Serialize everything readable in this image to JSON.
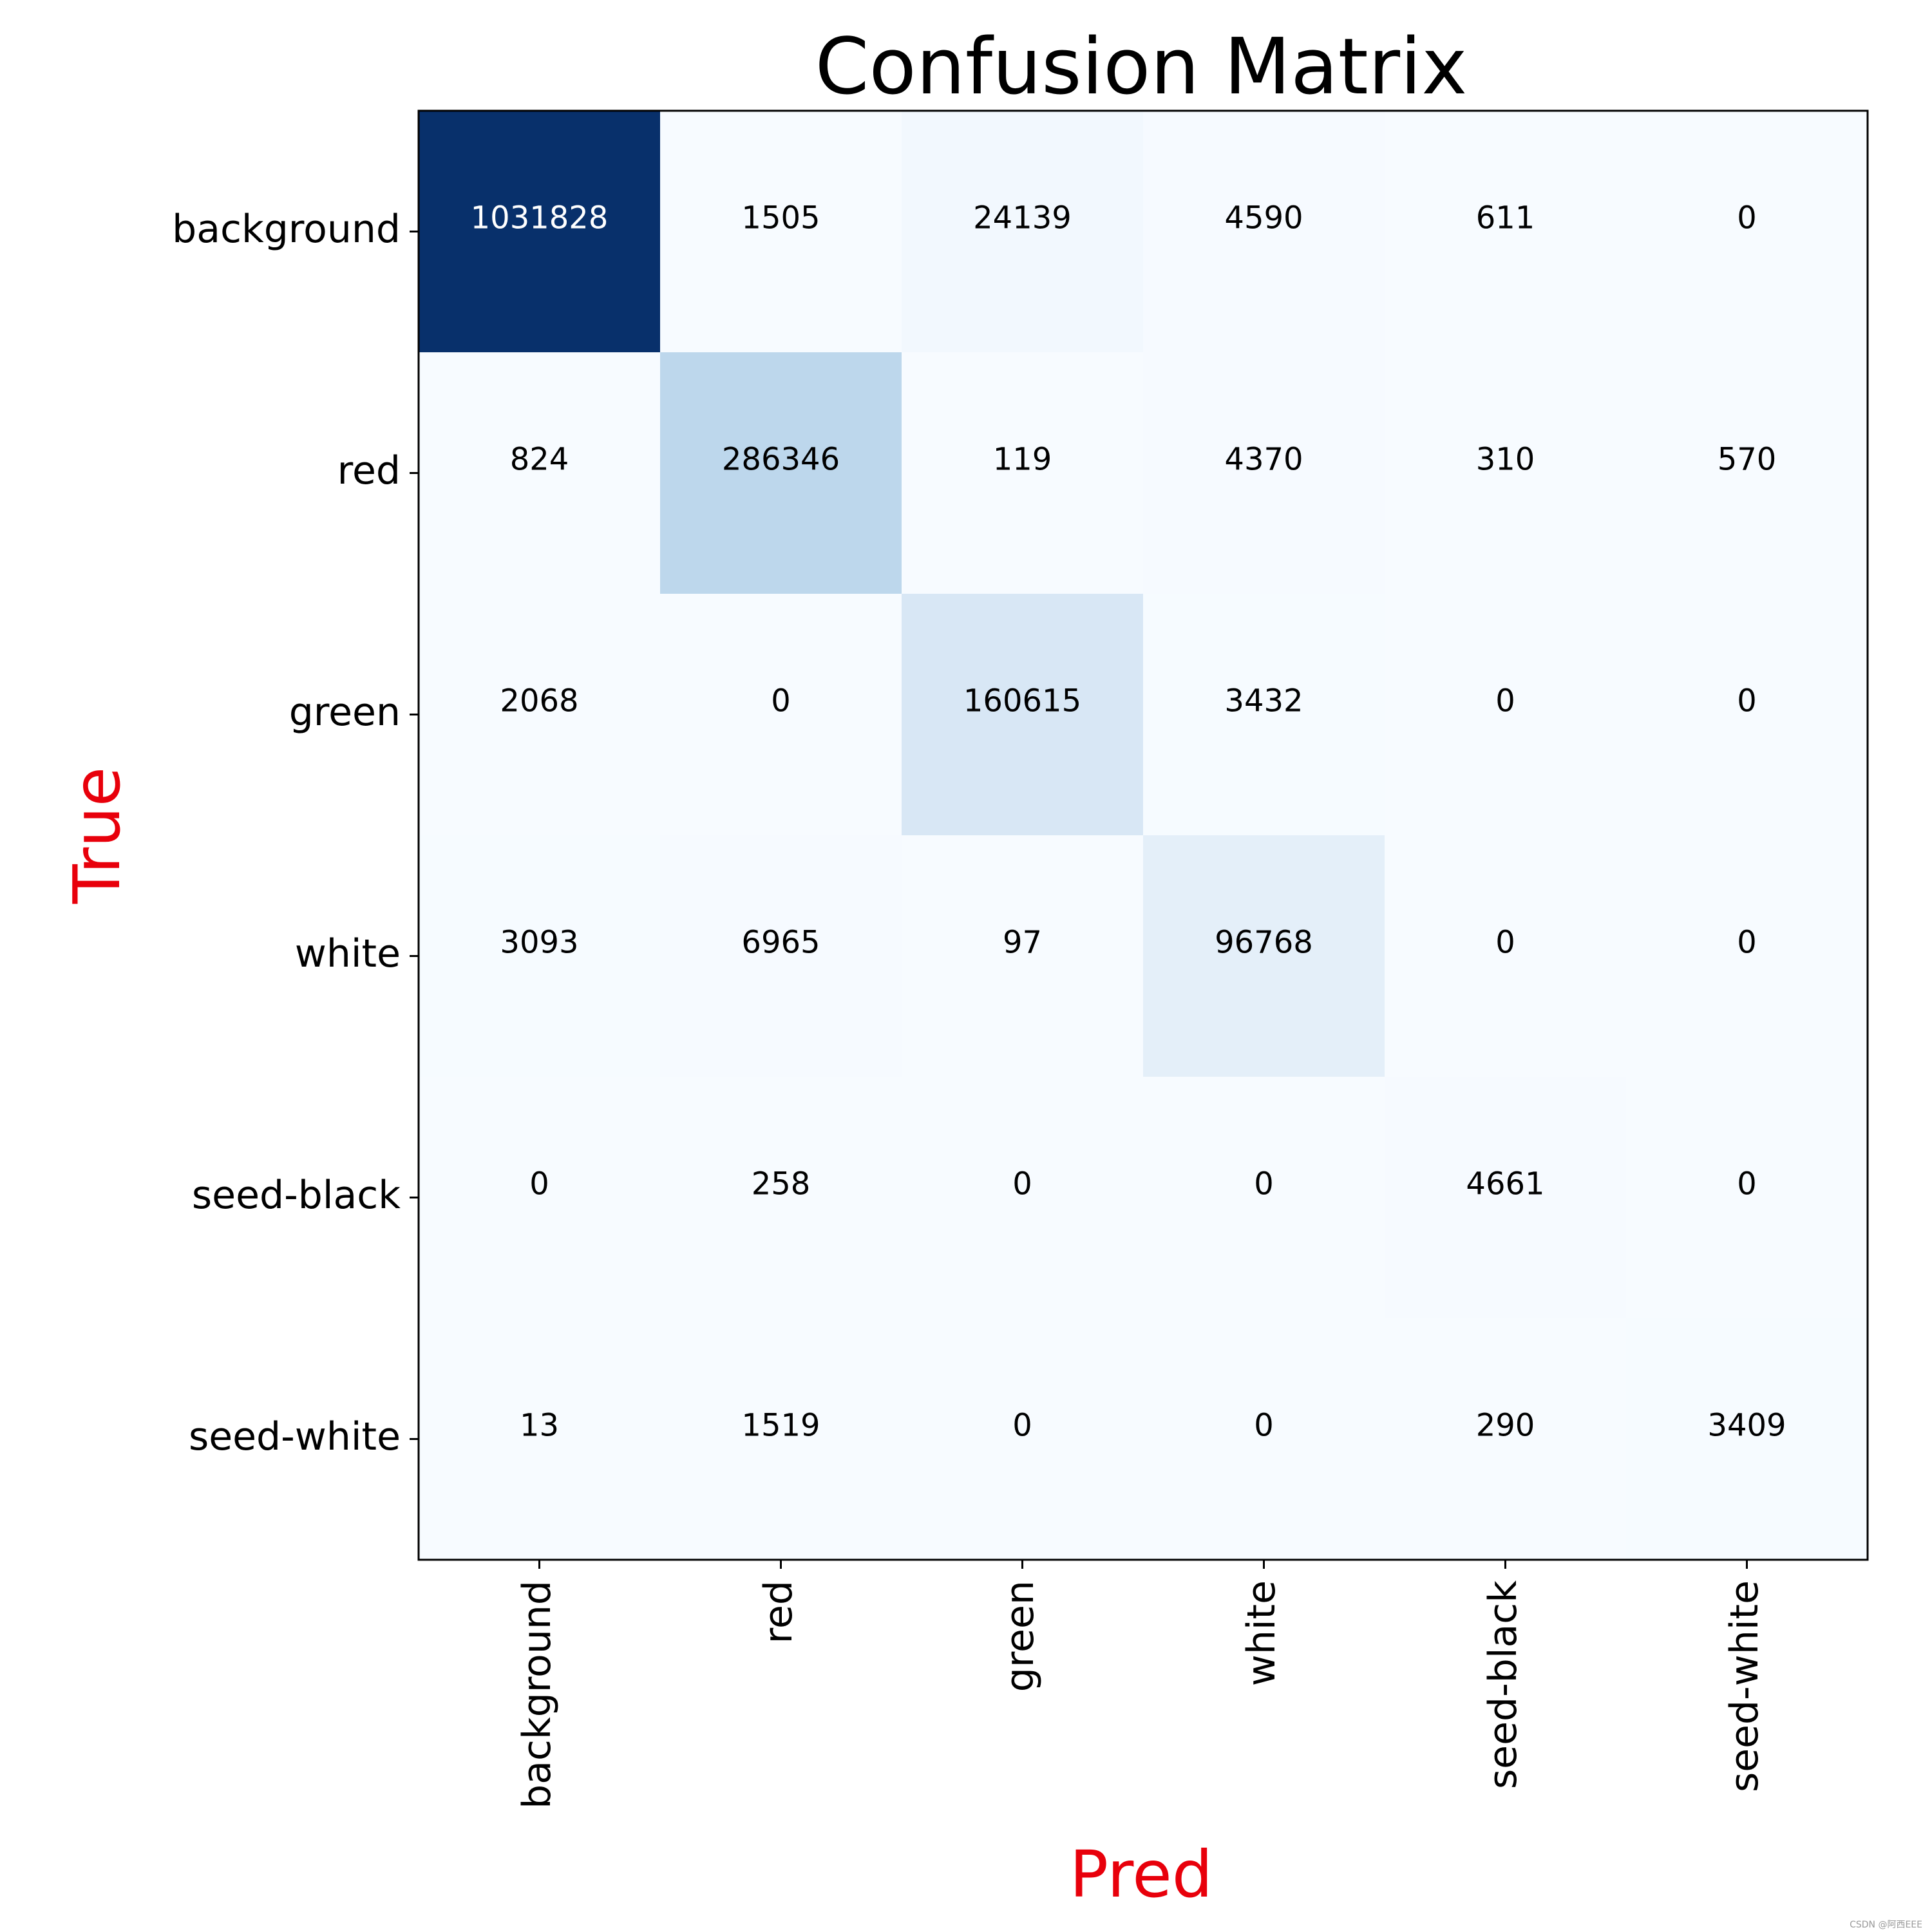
{
  "chart_data": {
    "type": "heatmap",
    "title": "Confusion Matrix",
    "xlabel": "Pred",
    "ylabel": "True",
    "axis_label_color": "#e8000b",
    "colormap": "Blues",
    "row_labels": [
      "background",
      "red",
      "green",
      "white",
      "seed-black",
      "seed-white"
    ],
    "col_labels": [
      "background",
      "red",
      "green",
      "white",
      "seed-black",
      "seed-white"
    ],
    "values": [
      [
        1031828,
        1505,
        24139,
        4590,
        611,
        0
      ],
      [
        824,
        286346,
        119,
        4370,
        310,
        570
      ],
      [
        2068,
        0,
        160615,
        3432,
        0,
        0
      ],
      [
        3093,
        6965,
        97,
        96768,
        0,
        0
      ],
      [
        0,
        258,
        0,
        0,
        4661,
        0
      ],
      [
        13,
        1519,
        0,
        0,
        290,
        3409
      ]
    ]
  },
  "watermark": "CSDN @阿西EEE"
}
